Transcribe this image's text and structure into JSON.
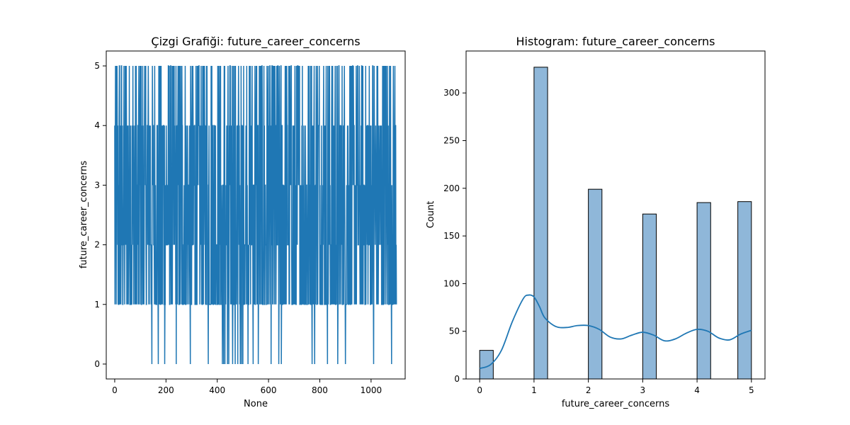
{
  "chart_data": [
    {
      "type": "line",
      "title": "Çizgi Grafiği: future_career_concerns",
      "xlabel": "None",
      "ylabel": "future_career_concerns",
      "xlim": [
        -33,
        1133
      ],
      "ylim": [
        -0.25,
        5.25
      ],
      "xticks": [
        0,
        200,
        400,
        600,
        800,
        1000
      ],
      "yticks": [
        0,
        1,
        2,
        3,
        4,
        5
      ],
      "grid": false,
      "color": "#1f77b4",
      "n_points": 1100,
      "series_note": "Index 0–1099; values are integers 0–5 oscillating rapidly. Approx counts: 0:30, 1:327, 2:199, 3:173, 4:185, 5:186.",
      "zero_positions": [
        145,
        170,
        195,
        240,
        295,
        365,
        420,
        425,
        430,
        440,
        445,
        460,
        470,
        480,
        490,
        495,
        500,
        520,
        540,
        560,
        610,
        640,
        650,
        770,
        780,
        830,
        870,
        900,
        1010,
        1080
      ]
    },
    {
      "type": "bar",
      "title": "Histogram: future_career_concerns",
      "xlabel": "future_career_concerns",
      "ylabel": "Count",
      "xlim": [
        -0.25,
        5.25
      ],
      "ylim": [
        0,
        344
      ],
      "xticks": [
        0,
        1,
        2,
        3,
        4,
        5
      ],
      "yticks": [
        0,
        50,
        100,
        150,
        200,
        250,
        300
      ],
      "bin_width": 0.25,
      "bins": [
        {
          "center": 0.125,
          "count": 30
        },
        {
          "center": 1.125,
          "count": 327
        },
        {
          "center": 2.125,
          "count": 199
        },
        {
          "center": 3.125,
          "count": 173
        },
        {
          "center": 4.125,
          "count": 185
        },
        {
          "center": 4.875,
          "count": 186
        }
      ],
      "kde": {
        "x": [
          0.0,
          0.2,
          0.4,
          0.6,
          0.8,
          0.9,
          1.0,
          1.1,
          1.2,
          1.4,
          1.6,
          1.8,
          2.0,
          2.2,
          2.4,
          2.6,
          2.8,
          3.0,
          3.2,
          3.4,
          3.6,
          3.8,
          4.0,
          4.2,
          4.4,
          4.6,
          4.8,
          5.0
        ],
        "y": [
          11,
          15,
          30,
          60,
          84,
          88,
          86,
          76,
          64,
          55,
          54,
          56,
          56,
          52,
          44,
          42,
          46,
          49,
          46,
          40,
          42,
          48,
          52,
          50,
          43,
          41,
          47,
          51
        ]
      },
      "bar_color": "#8fb7d9",
      "edge_color": "#000000",
      "kde_color": "#1f77b4",
      "grid": false
    }
  ]
}
